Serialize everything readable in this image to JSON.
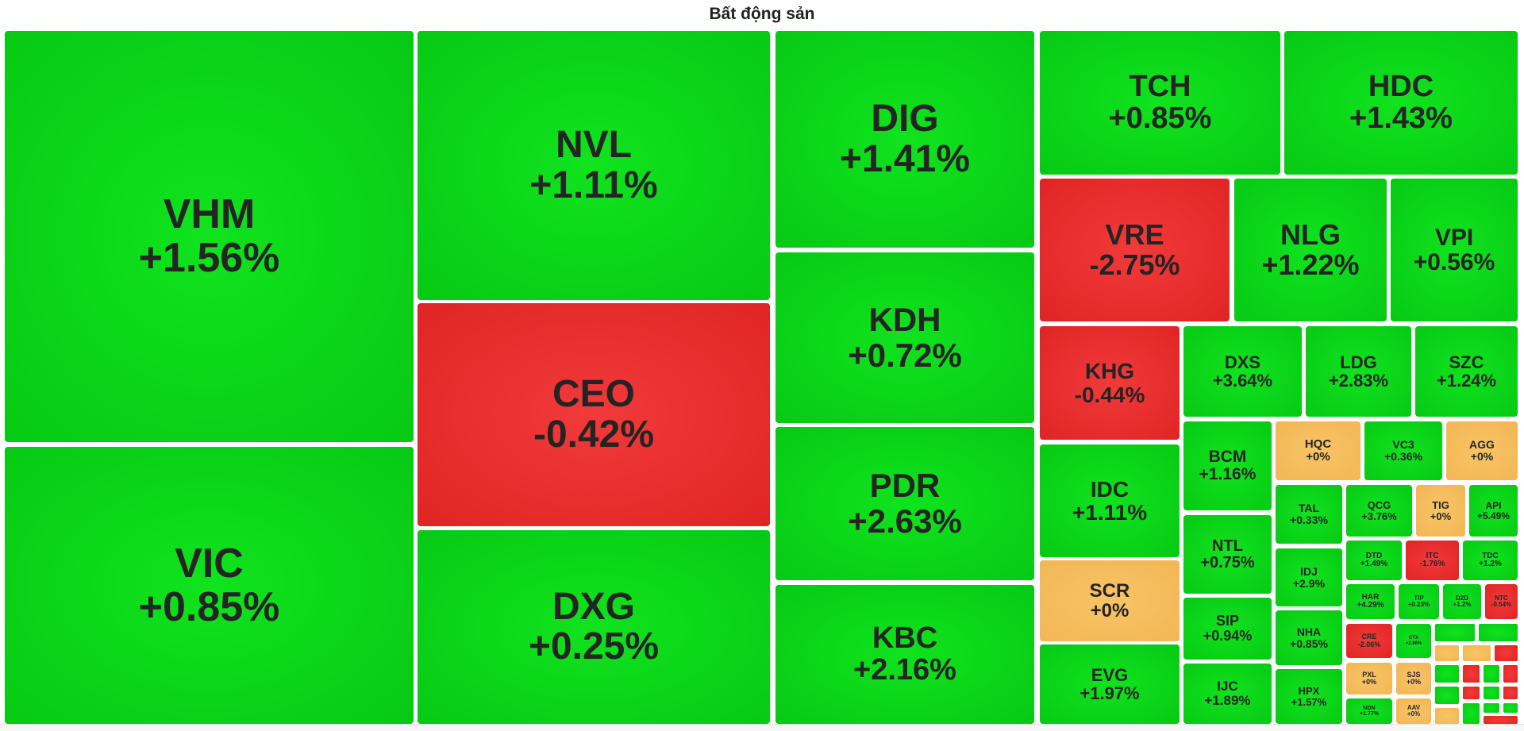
{
  "colors": {
    "up": "#07c914",
    "down": "#e02424",
    "flat": "#f2b655",
    "text": "#242424"
  },
  "chart_data": {
    "type": "treemap",
    "title": "Bất động sản",
    "tiles": [
      {
        "symbol": "VHM",
        "change": "+1.56%",
        "value": 1.56
      },
      {
        "symbol": "VIC",
        "change": "+0.85%",
        "value": 0.85
      },
      {
        "symbol": "NVL",
        "change": "+1.11%",
        "value": 1.11
      },
      {
        "symbol": "CEO",
        "change": "-0.42%",
        "value": -0.42
      },
      {
        "symbol": "DXG",
        "change": "+0.25%",
        "value": 0.25
      },
      {
        "symbol": "DIG",
        "change": "+1.41%",
        "value": 1.41
      },
      {
        "symbol": "KDH",
        "change": "+0.72%",
        "value": 0.72
      },
      {
        "symbol": "PDR",
        "change": "+2.63%",
        "value": 2.63
      },
      {
        "symbol": "KBC",
        "change": "+2.16%",
        "value": 2.16
      },
      {
        "symbol": "TCH",
        "change": "+0.85%",
        "value": 0.85
      },
      {
        "symbol": "HDC",
        "change": "+1.43%",
        "value": 1.43
      },
      {
        "symbol": "VRE",
        "change": "-2.75%",
        "value": -2.75
      },
      {
        "symbol": "NLG",
        "change": "+1.22%",
        "value": 1.22
      },
      {
        "symbol": "VPI",
        "change": "+0.56%",
        "value": 0.56
      },
      {
        "symbol": "KHG",
        "change": "-0.44%",
        "value": -0.44
      },
      {
        "symbol": "IDC",
        "change": "+1.11%",
        "value": 1.11
      },
      {
        "symbol": "SCR",
        "change": "+0%",
        "value": 0
      },
      {
        "symbol": "EVG",
        "change": "+1.97%",
        "value": 1.97
      },
      {
        "symbol": "DXS",
        "change": "+3.64%",
        "value": 3.64
      },
      {
        "symbol": "LDG",
        "change": "+2.83%",
        "value": 2.83
      },
      {
        "symbol": "SZC",
        "change": "+1.24%",
        "value": 1.24
      },
      {
        "symbol": "BCM",
        "change": "+1.16%",
        "value": 1.16
      },
      {
        "symbol": "NTL",
        "change": "+0.75%",
        "value": 0.75
      },
      {
        "symbol": "SIP",
        "change": "+0.94%",
        "value": 0.94
      },
      {
        "symbol": "IJC",
        "change": "+1.89%",
        "value": 1.89
      },
      {
        "symbol": "HQC",
        "change": "+0%",
        "value": 0
      },
      {
        "symbol": "VC3",
        "change": "+0.36%",
        "value": 0.36
      },
      {
        "symbol": "AGG",
        "change": "+0%",
        "value": 0
      },
      {
        "symbol": "TAL",
        "change": "+0.33%",
        "value": 0.33
      },
      {
        "symbol": "QCG",
        "change": "+3.76%",
        "value": 3.76
      },
      {
        "symbol": "TIG",
        "change": "+0%",
        "value": 0
      },
      {
        "symbol": "API",
        "change": "+5.49%",
        "value": 5.49
      },
      {
        "symbol": "IDJ",
        "change": "+2.9%",
        "value": 2.9
      },
      {
        "symbol": "DTD",
        "change": "+1.49%",
        "value": 1.49
      },
      {
        "symbol": "ITC",
        "change": "-1.76%",
        "value": -1.76
      },
      {
        "symbol": "TDC",
        "change": "+1.2%",
        "value": 1.2
      },
      {
        "symbol": "NHA",
        "change": "+0.85%",
        "value": 0.85
      },
      {
        "symbol": "HAR",
        "change": "+4.29%",
        "value": 4.29
      },
      {
        "symbol": "TIP",
        "change": "+0.23%",
        "value": 0.23
      },
      {
        "symbol": "D2D",
        "change": "+1.2%",
        "value": 1.2
      },
      {
        "symbol": "NTC",
        "change": "-0.54%",
        "value": -0.54
      },
      {
        "symbol": "HPX",
        "change": "+1.57%",
        "value": 1.57
      },
      {
        "symbol": "CRE",
        "change": "-2.06%",
        "value": -2.06
      },
      {
        "symbol": "CTX",
        "change": "+2.86%",
        "value": 2.86
      },
      {
        "symbol": "PXL",
        "change": "+0%",
        "value": 0
      },
      {
        "symbol": "SJS",
        "change": "+0%",
        "value": 0
      },
      {
        "symbol": "NDN",
        "change": "+1.77%",
        "value": 1.77
      },
      {
        "symbol": "AAV",
        "change": "+0%",
        "value": 0
      }
    ]
  }
}
